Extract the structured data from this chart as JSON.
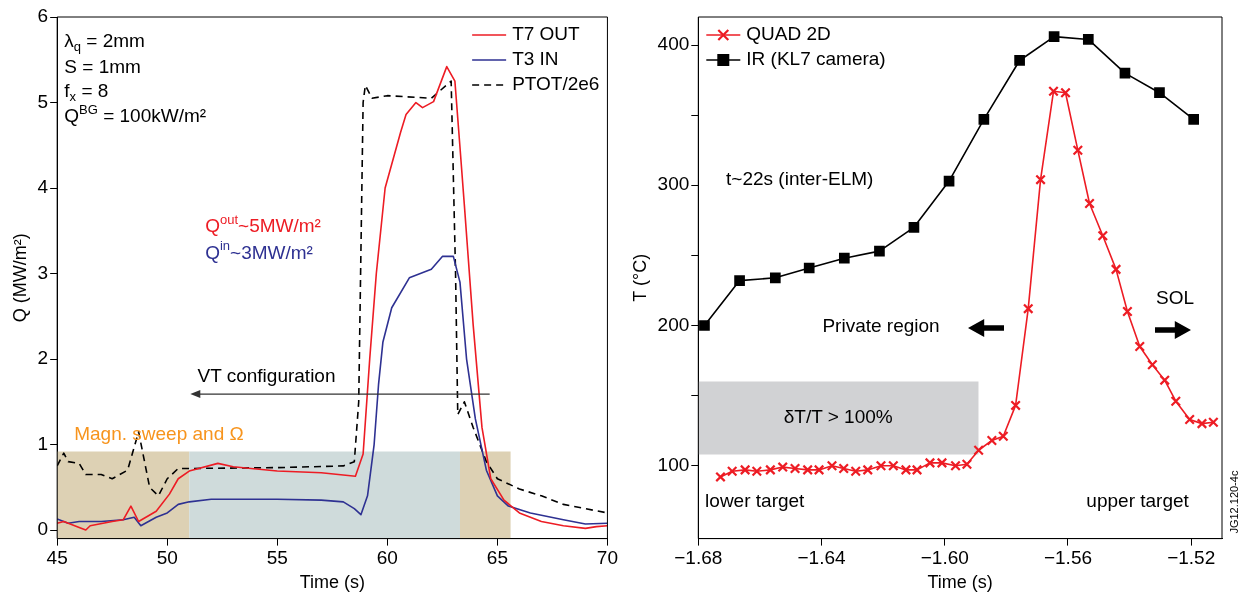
{
  "chart_data": [
    {
      "type": "line",
      "xlabel": "Time (s)",
      "ylabel": "Q (MW/m²)",
      "xlim": [
        45,
        70
      ],
      "ylim": [
        -0.1,
        6
      ],
      "xticks": [
        45,
        50,
        55,
        60,
        65,
        70
      ],
      "yticks": [
        0,
        1,
        2,
        3,
        4,
        5,
        6
      ],
      "grid": false,
      "legend": "top right",
      "marker": "none",
      "series": [
        {
          "name": "T7 OUT",
          "color": "#ed1c24",
          "line_style": "solid",
          "x": [
            45,
            45.3,
            46,
            46.3,
            46.5,
            47.5,
            48,
            48.35,
            48.7,
            49.5,
            50.1,
            50.5,
            51,
            52.3,
            53,
            55,
            57,
            58.55,
            58.9,
            59.2,
            59.5,
            59.9,
            60.6,
            60.85,
            61.3,
            61.6,
            62.1,
            62.7,
            63.07,
            63.3,
            63.5,
            63.9,
            64.3,
            64.7,
            65.3,
            66,
            67,
            68,
            69,
            69.5,
            70
          ],
          "values": [
            0.08,
            0.1,
            0.03,
            0,
            0.05,
            0.1,
            0.12,
            0.28,
            0.1,
            0.22,
            0.42,
            0.6,
            0.69,
            0.78,
            0.74,
            0.69,
            0.67,
            0.63,
            0.89,
            2,
            3,
            4,
            4.65,
            4.86,
            5,
            4.94,
            5.01,
            5.42,
            5.25,
            4.48,
            3.8,
            2.4,
            1.2,
            0.6,
            0.35,
            0.2,
            0.1,
            0.05,
            0.02,
            0.04,
            0.05
          ]
        },
        {
          "name": "T3 IN",
          "color": "#2e3192",
          "line_style": "solid",
          "x": [
            45,
            45.5,
            46,
            47,
            48,
            48.5,
            48.8,
            49.5,
            50,
            50.5,
            51,
            52,
            55,
            57,
            58,
            58.5,
            58.8,
            59.1,
            59.4,
            59.6,
            59.8,
            60.2,
            61,
            61.5,
            62,
            62.5,
            63,
            63.3,
            63.6,
            64,
            64.5,
            65,
            65.5,
            66.5,
            68,
            69,
            70
          ],
          "values": [
            0.13,
            0.08,
            0.1,
            0.1,
            0.12,
            0.15,
            0.05,
            0.15,
            0.2,
            0.3,
            0.33,
            0.36,
            0.36,
            0.35,
            0.33,
            0.25,
            0.18,
            0.4,
            1,
            1.7,
            2.2,
            2.6,
            2.95,
            3,
            3.05,
            3.2,
            3.2,
            2.9,
            2,
            1.3,
            0.7,
            0.4,
            0.28,
            0.2,
            0.12,
            0.07,
            0.08
          ]
        },
        {
          "name": "PTOT/2e6",
          "color": "#000000",
          "line_style": "dashed",
          "x": [
            45,
            45.3,
            45.5,
            46,
            46.3,
            47,
            47.5,
            48.2,
            48.7,
            49.2,
            49.6,
            50,
            50.5,
            51,
            55,
            58,
            58.5,
            58.7,
            58.9,
            59,
            59.3,
            60,
            62,
            62.9,
            63.1,
            63.2,
            63.5,
            63.9,
            64.5,
            65,
            66,
            67,
            68,
            69,
            70
          ],
          "values": [
            0.75,
            0.9,
            0.8,
            0.78,
            0.65,
            0.65,
            0.6,
            0.7,
            1.15,
            0.5,
            0.4,
            0.6,
            0.72,
            0.72,
            0.73,
            0.75,
            0.8,
            1.5,
            5,
            5.2,
            5.05,
            5.08,
            5.05,
            5.25,
            3,
            1.35,
            1.5,
            1.2,
            0.8,
            0.6,
            0.48,
            0.4,
            0.3,
            0.25,
            0.2
          ]
        }
      ],
      "bands": [
        {
          "axis": "x",
          "from": 45,
          "to": 51,
          "color": "#ddd1b4",
          "label": "Magn. sweep and Ω"
        },
        {
          "axis": "x",
          "from": 51,
          "to": 63.3,
          "color": "#cfdbdb"
        },
        {
          "axis": "x",
          "from": 63.3,
          "to": 65.6,
          "color": "#ddd1b4"
        }
      ],
      "annotations": [
        "λ$_{q}$ = 2mm",
        "S = 1mm",
        "f$_{x}$ = 8",
        "Q$^{BG}$ = 100kW/m²",
        "Q$^{out}$~5MW/m²",
        "Q$^{in}$~3MW/m²",
        "VT configuration"
      ]
    },
    {
      "type": "line",
      "xlabel": "Time (s)",
      "ylabel": "T (°C)",
      "xlim": [
        -1.68,
        -1.51
      ],
      "ylim": [
        48,
        420
      ],
      "xticks": [
        {
          "value": -1.68,
          "label": "−1.68"
        },
        {
          "value": -1.64,
          "label": "−1.64"
        },
        {
          "value": -1.6,
          "label": "−1.60"
        },
        {
          "value": -1.56,
          "label": "−1.56"
        },
        {
          "value": -1.52,
          "label": "−1.52"
        }
      ],
      "yticks": [
        100,
        {
          "value": 150,
          "label": null
        },
        200,
        {
          "value": 250,
          "label": null
        },
        300,
        {
          "value": 350,
          "label": null
        },
        400
      ],
      "grid": false,
      "legend": "top left",
      "line_style": "solid",
      "series": [
        {
          "name": "QUAD 2D",
          "color": "#ed1c24",
          "marker": "cross",
          "x": [
            -1.6728,
            -1.669,
            -1.6648,
            -1.661,
            -1.6566,
            -1.6526,
            -1.6486,
            -1.6445,
            -1.6408,
            -1.6366,
            -1.6328,
            -1.6289,
            -1.625,
            -1.6207,
            -1.6167,
            -1.6126,
            -1.609,
            -1.6048,
            -1.6009,
            -1.5965,
            -1.5928,
            -1.589,
            -1.5847,
            -1.581,
            -1.577,
            -1.5729,
            -1.5689,
            -1.5647,
            -1.5608,
            -1.5568,
            -1.553,
            -1.5487,
            -1.5444,
            -1.5407,
            -1.5367,
            -1.5326,
            -1.5286,
            -1.525,
            -1.5205,
            -1.5165,
            -1.5128
          ],
          "values": [
            92,
            96,
            97,
            96,
            97,
            99,
            98,
            97,
            97,
            100,
            98,
            96,
            97,
            100,
            100,
            97,
            97,
            102,
            102,
            100,
            101,
            111,
            118,
            121,
            143,
            212,
            304,
            367,
            366,
            325,
            287,
            264,
            240,
            210,
            185,
            172,
            161,
            146,
            133,
            130,
            131
          ]
        },
        {
          "name": "IR (KL7 camera)",
          "color": "#000000",
          "marker": "square",
          "x": [
            -1.678,
            -1.6666,
            -1.655,
            -1.644,
            -1.6326,
            -1.6212,
            -1.61,
            -1.5986,
            -1.5873,
            -1.5757,
            -1.5645,
            -1.5534,
            -1.5415,
            -1.5303,
            -1.5192
          ],
          "values": [
            200,
            232,
            234,
            241,
            248,
            253,
            270,
            303,
            347,
            389,
            406,
            404,
            380,
            366,
            347
          ]
        }
      ],
      "bands": [
        {
          "axis": "y",
          "from": 108,
          "to": 160,
          "color": "#d1d2d4",
          "label": "δT/T > 100%"
        }
      ],
      "annotations": [
        "t~22s (inter-ELM)",
        "Private region",
        "SOL",
        "lower target",
        "upper target",
        "JG12.120-4c"
      ]
    }
  ]
}
